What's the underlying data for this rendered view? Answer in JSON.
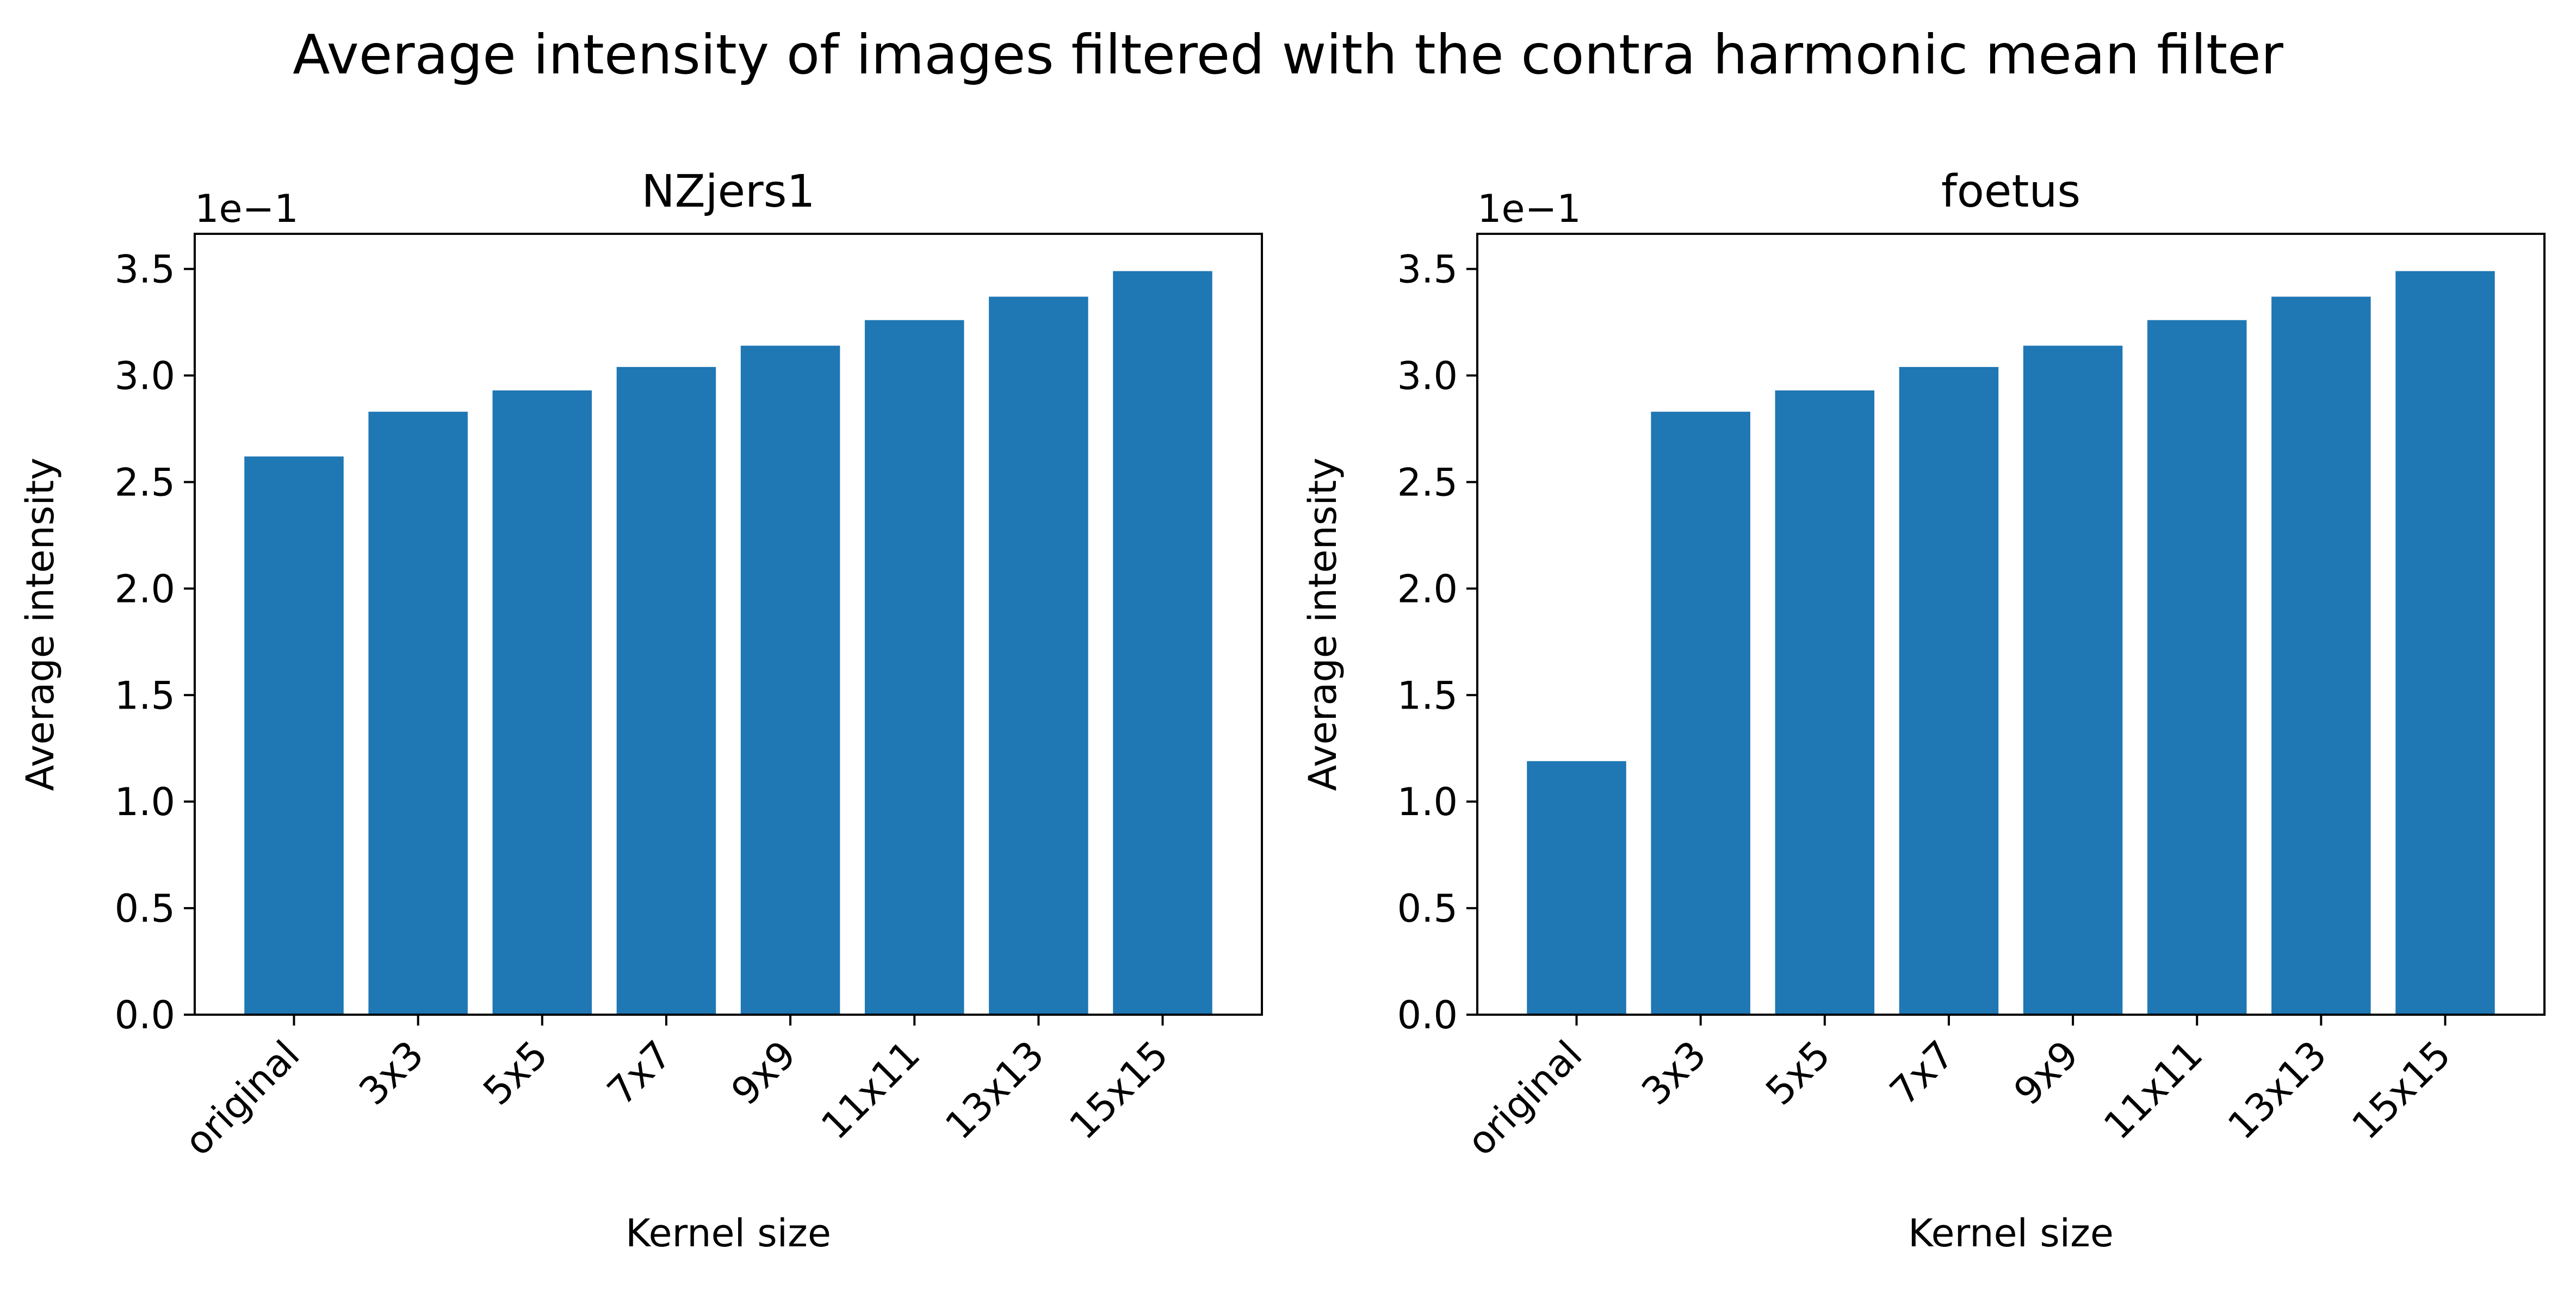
{
  "suptitle": "Average intensity of images filtered with the contra harmonic mean filter",
  "colors": {
    "bar": "#1f77b4"
  },
  "chart_data": [
    {
      "type": "bar",
      "title": "NZjers1",
      "xlabel": "Kernel size",
      "ylabel": "Average intensity",
      "offset_label": "1e−1",
      "categories": [
        "original",
        "3x3",
        "5x5",
        "7x7",
        "9x9",
        "11x11",
        "13x13",
        "15x15"
      ],
      "values": [
        0.262,
        0.283,
        0.293,
        0.304,
        0.314,
        0.326,
        0.337,
        0.349
      ],
      "ylim": [
        0,
        0.3665
      ],
      "yticks": [
        0,
        0.05,
        0.1,
        0.15,
        0.2,
        0.25,
        0.3,
        0.35
      ],
      "ytick_labels": [
        "0.0",
        "0.5",
        "1.0",
        "1.5",
        "2.0",
        "2.5",
        "3.0",
        "3.5"
      ],
      "grid": false
    },
    {
      "type": "bar",
      "title": "foetus",
      "xlabel": "Kernel size",
      "ylabel": "Average intensity",
      "offset_label": "1e−1",
      "categories": [
        "original",
        "3x3",
        "5x5",
        "7x7",
        "9x9",
        "11x11",
        "13x13",
        "15x15"
      ],
      "values": [
        0.119,
        0.283,
        0.293,
        0.304,
        0.314,
        0.326,
        0.337,
        0.349
      ],
      "ylim": [
        0,
        0.3665
      ],
      "yticks": [
        0,
        0.05,
        0.1,
        0.15,
        0.2,
        0.25,
        0.3,
        0.35
      ],
      "ytick_labels": [
        "0.0",
        "0.5",
        "1.0",
        "1.5",
        "2.0",
        "2.5",
        "3.0",
        "3.5"
      ],
      "grid": false
    }
  ]
}
